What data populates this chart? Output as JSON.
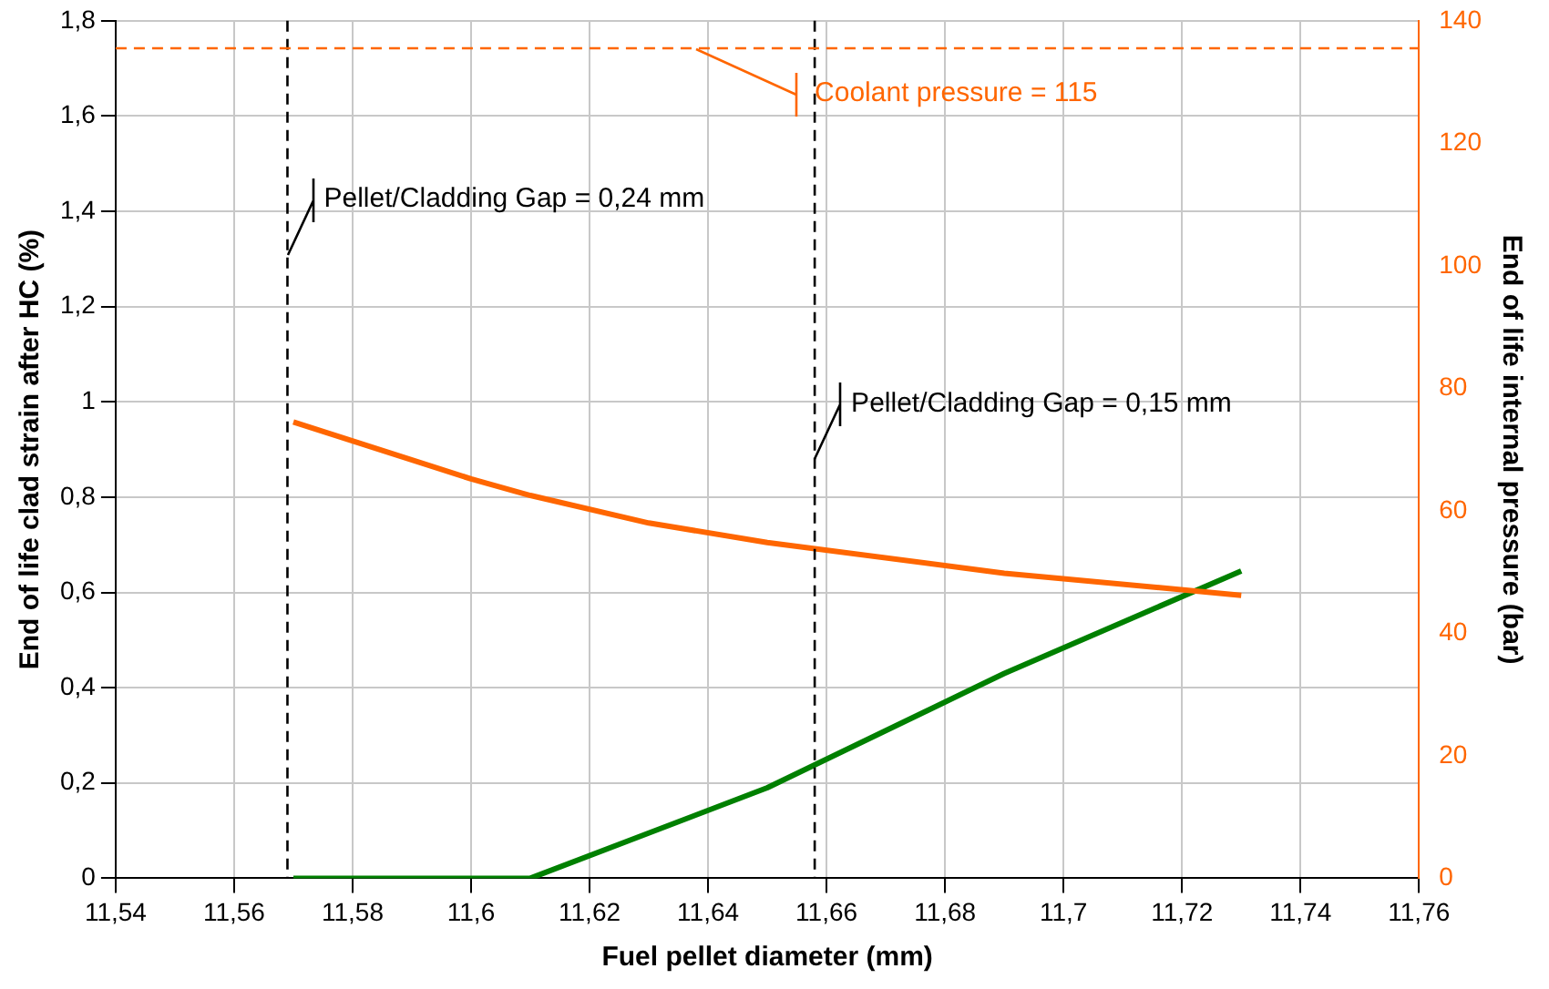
{
  "chart_data": {
    "type": "line",
    "xlabel": "Fuel pellet diameter (mm)",
    "ylabel": "End of life clad strain after HC (%)",
    "y2label": "End of life internal pressure (bar)",
    "xlim": [
      11.54,
      11.76
    ],
    "xticks": [
      {
        "value": 11.54,
        "label": "11,54"
      },
      {
        "value": 11.56,
        "label": "11,56"
      },
      {
        "value": 11.58,
        "label": "11,58"
      },
      {
        "value": 11.6,
        "label": "11,6"
      },
      {
        "value": 11.62,
        "label": "11,62"
      },
      {
        "value": 11.64,
        "label": "11,64"
      },
      {
        "value": 11.66,
        "label": "11,66"
      },
      {
        "value": 11.68,
        "label": "11,68"
      },
      {
        "value": 11.7,
        "label": "11,7"
      },
      {
        "value": 11.72,
        "label": "11,72"
      },
      {
        "value": 11.74,
        "label": "11,74"
      },
      {
        "value": 11.76,
        "label": "11,76"
      }
    ],
    "ylim": [
      0,
      1.8
    ],
    "yticks": [
      0,
      {
        "value": 0.2,
        "label": "0,2"
      },
      {
        "value": 0.4,
        "label": "0,4"
      },
      {
        "value": 0.6,
        "label": "0,6"
      },
      {
        "value": 0.8,
        "label": "0,8"
      },
      1,
      {
        "value": 1.2,
        "label": "1,2"
      },
      {
        "value": 1.4,
        "label": "1,4"
      },
      {
        "value": 1.6,
        "label": "1,6"
      },
      {
        "value": 1.8,
        "label": "1,8"
      }
    ],
    "y2lim": [
      0,
      140
    ],
    "y2ticks": [
      0,
      20,
      40,
      60,
      80,
      100,
      120,
      140
    ],
    "grid": true,
    "legend": false,
    "marker": "none",
    "series": [
      {
        "color": "#ff6600",
        "axis": "y2",
        "x": [
          11.57,
          11.6,
          11.61,
          11.63,
          11.65,
          11.69,
          11.73
        ],
        "values": [
          74.5,
          65.2,
          62.5,
          58.0,
          54.8,
          49.8,
          46.2
        ]
      },
      {
        "color": "#008000",
        "x": [
          11.57,
          11.61,
          11.65,
          11.69,
          11.73
        ],
        "values": [
          0,
          0,
          0.19,
          0.43,
          0.645
        ]
      }
    ],
    "ref_lines": [
      {
        "axis": "x",
        "value": 11.569,
        "color": "#000000",
        "line_style": "dashed"
      },
      {
        "axis": "x",
        "value": 11.658,
        "color": "#000000",
        "line_style": "dashed"
      },
      {
        "axis": "y2",
        "value": 135.5,
        "color": "#ff6600",
        "line_style": "dashed"
      }
    ],
    "annotations": [
      {
        "text": "Pellet/Cladding Gap = 0,24 mm",
        "x": 11.569,
        "y": 1.31
      },
      {
        "text": "Pellet/Cladding Gap = 0,15 mm",
        "x": 11.658,
        "y": 0.88
      },
      {
        "text": "Coolant pressure = 115",
        "x": 11.638,
        "y": 1.742
      }
    ]
  }
}
